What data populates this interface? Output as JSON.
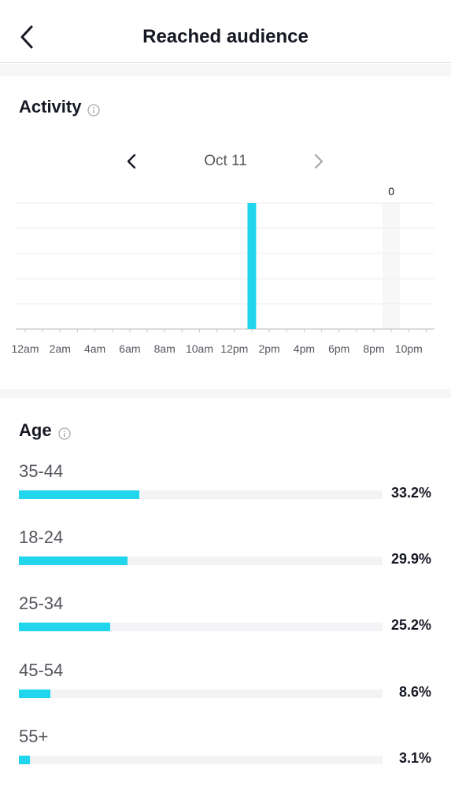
{
  "header": {
    "title": "Reached audience",
    "back_icon": "chevron-left-icon"
  },
  "activity": {
    "title": "Activity",
    "info_icon": "info-icon",
    "date": "Oct 11",
    "prev_icon": "chevron-left-icon",
    "next_icon": "chevron-right-icon"
  },
  "chart_data": {
    "type": "bar",
    "categories": [
      "12am",
      "1am",
      "2am",
      "3am",
      "4am",
      "5am",
      "6am",
      "7am",
      "8am",
      "9am",
      "10am",
      "11am",
      "12pm",
      "1pm",
      "2pm",
      "3pm",
      "4pm",
      "5pm",
      "6pm",
      "7pm",
      "8pm",
      "9pm",
      "10pm",
      "11pm"
    ],
    "tick_labels": [
      "12am",
      "2am",
      "4am",
      "6am",
      "8am",
      "10am",
      "12pm",
      "2pm",
      "4pm",
      "6pm",
      "8pm",
      "10pm"
    ],
    "values": [
      0,
      0,
      0,
      0,
      0,
      0,
      0,
      0,
      0,
      0,
      0,
      0,
      0,
      1,
      0,
      0,
      0,
      0,
      0,
      0,
      0,
      0,
      0,
      0
    ],
    "highlight_index": 21,
    "highlight_value_label": "0",
    "grid": true,
    "colors": {
      "bar": "#20d5ec",
      "grid": "#ececee",
      "axis": "#c8c8cc",
      "highlight": "#f7f7f8"
    }
  },
  "age": {
    "title": "Age",
    "info_icon": "info-icon",
    "groups": [
      {
        "label": "35-44",
        "percent_label": "33.2%",
        "value": 33.2
      },
      {
        "label": "18-24",
        "percent_label": "29.9%",
        "value": 29.9
      },
      {
        "label": "25-34",
        "percent_label": "25.2%",
        "value": 25.2
      },
      {
        "label": "45-54",
        "percent_label": "8.6%",
        "value": 8.6
      },
      {
        "label": "55+",
        "percent_label": "3.1%",
        "value": 3.1
      }
    ]
  }
}
